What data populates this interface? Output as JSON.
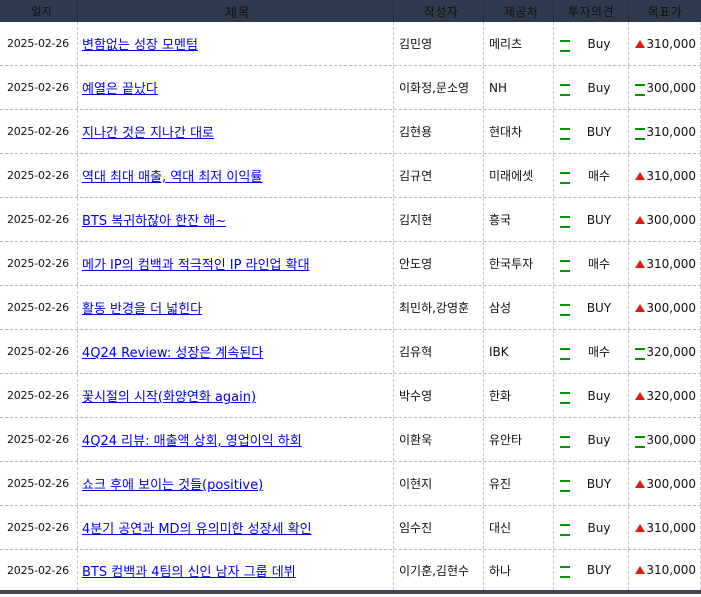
{
  "colors": {
    "header_bg": "#2e3a4d",
    "header_fg": "#eef1f6",
    "link_blue": "#0000ee",
    "up_red": "#e2190f",
    "same_green": "#009300",
    "bottom_bar": "#42464e"
  },
  "header": {
    "date": "일자",
    "title": "제목",
    "author": "작성자",
    "provider": "제공처",
    "opinion": "투자의견",
    "target": "목표가"
  },
  "rows": [
    {
      "date": "2025-02-26",
      "title": "변함없는 성장 모멘텀",
      "author": "김민영",
      "provider": "메리츠",
      "opinion_change": "same",
      "opinion": "Buy",
      "target_change": "up",
      "target": "310,000"
    },
    {
      "date": "2025-02-26",
      "title": "예열은 끝났다",
      "author": "이화정,문소영",
      "provider": "NH",
      "opinion_change": "same",
      "opinion": "Buy",
      "target_change": "same",
      "target": "300,000"
    },
    {
      "date": "2025-02-26",
      "title": "지나간 것은 지나간 대로",
      "author": "김현용",
      "provider": "현대차",
      "opinion_change": "same",
      "opinion": "BUY",
      "target_change": "same",
      "target": "310,000"
    },
    {
      "date": "2025-02-26",
      "title": "역대 최대 매출, 역대 최저 이익률",
      "author": "김규연",
      "provider": "미래에셋",
      "opinion_change": "same",
      "opinion": "매수",
      "target_change": "up",
      "target": "310,000"
    },
    {
      "date": "2025-02-26",
      "title": "BTS 복귀하잖아 한잔 해~",
      "author": "김지현",
      "provider": "흥국",
      "opinion_change": "same",
      "opinion": "BUY",
      "target_change": "up",
      "target": "300,000"
    },
    {
      "date": "2025-02-26",
      "title": "메가 IP의 컴백과 적극적인 IP 라인업 확대",
      "author": "안도영",
      "provider": "한국투자",
      "opinion_change": "same",
      "opinion": "매수",
      "target_change": "up",
      "target": "310,000"
    },
    {
      "date": "2025-02-26",
      "title": "활동 반경을 더 넓힌다",
      "author": "최민하,강영훈",
      "provider": "삼성",
      "opinion_change": "same",
      "opinion": "BUY",
      "target_change": "up",
      "target": "300,000"
    },
    {
      "date": "2025-02-26",
      "title": "4Q24 Review: 성장은 계속된다",
      "author": "김유혁",
      "provider": "IBK",
      "opinion_change": "same",
      "opinion": "매수",
      "target_change": "same",
      "target": "320,000"
    },
    {
      "date": "2025-02-26",
      "title": "꽃시절의 시작(화양연화 again)",
      "author": "박수영",
      "provider": "한화",
      "opinion_change": "same",
      "opinion": "Buy",
      "target_change": "up",
      "target": "320,000"
    },
    {
      "date": "2025-02-26",
      "title": "4Q24 리뷰: 매출액 상회, 영업이익 하회",
      "author": "이환욱",
      "provider": "유안타",
      "opinion_change": "same",
      "opinion": "Buy",
      "target_change": "same",
      "target": "300,000"
    },
    {
      "date": "2025-02-26",
      "title": "쇼크 후에 보이는 것들(positive)",
      "author": "이현지",
      "provider": "유진",
      "opinion_change": "same",
      "opinion": "BUY",
      "target_change": "up",
      "target": "300,000"
    },
    {
      "date": "2025-02-26",
      "title": "4분기 공연과 MD의 유의미한 성장세 확인",
      "author": "임수진",
      "provider": "대신",
      "opinion_change": "same",
      "opinion": "Buy",
      "target_change": "up",
      "target": "310,000"
    },
    {
      "date": "2025-02-26",
      "title": "BTS 컴백과 4팀의 신인 남자 그룹 데뷔",
      "author": "이기훈,김현수",
      "provider": "하나",
      "opinion_change": "same",
      "opinion": "BUY",
      "target_change": "up",
      "target": "310,000"
    }
  ]
}
